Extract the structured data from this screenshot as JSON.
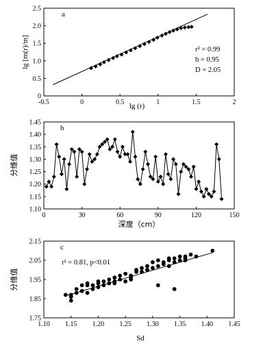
{
  "chart_data": [
    {
      "type": "scatter",
      "panel_letter": "a",
      "xlabel": "lg (r)",
      "ylabel": "lg [m(r)/m]",
      "xlim": [
        -0.5,
        2
      ],
      "ylim": [
        0,
        2.5
      ],
      "xticks": [
        "-0.5",
        "0",
        "0.5",
        "1",
        "1.5",
        "2"
      ],
      "yticks": [
        "0",
        "0.5",
        "1.0",
        "1.5",
        "2.0",
        "2.5"
      ],
      "annotations": [
        "r² = 0.99",
        "b = 0.95",
        "D = 2.05"
      ],
      "fit_line": {
        "x": [
          -0.38,
          1.65
        ],
        "y": [
          0.32,
          2.33
        ]
      },
      "points": {
        "x": [
          0.12,
          0.18,
          0.24,
          0.29,
          0.35,
          0.41,
          0.46,
          0.52,
          0.58,
          0.64,
          0.7,
          0.76,
          0.82,
          0.88,
          0.94,
          0.99,
          1.05,
          1.1,
          1.15,
          1.2,
          1.25,
          1.3,
          1.35,
          1.4,
          1.44
        ],
        "y": [
          0.79,
          0.84,
          0.9,
          0.96,
          1.02,
          1.08,
          1.13,
          1.18,
          1.24,
          1.3,
          1.36,
          1.42,
          1.48,
          1.54,
          1.6,
          1.66,
          1.72,
          1.77,
          1.82,
          1.86,
          1.9,
          1.93,
          1.95,
          1.96,
          1.97
        ]
      }
    },
    {
      "type": "line",
      "panel_letter": "b",
      "xlabel": "深度（cm）",
      "ylabel": "分维值",
      "xlim": [
        0,
        150
      ],
      "ylim": [
        1.1,
        1.45
      ],
      "xticks": [
        "0",
        "30",
        "60",
        "90",
        "120",
        "150"
      ],
      "yticks": [
        "1.10",
        "1.15",
        "1.20",
        "1.25",
        "1.30",
        "1.35",
        "1.40",
        "1.45"
      ],
      "x": [
        2,
        4,
        6,
        8,
        10,
        12,
        14,
        16,
        18,
        20,
        22,
        24,
        26,
        28,
        30,
        32,
        34,
        36,
        38,
        40,
        42,
        44,
        46,
        48,
        50,
        52,
        54,
        56,
        58,
        60,
        62,
        64,
        66,
        68,
        70,
        72,
        74,
        76,
        78,
        80,
        82,
        84,
        86,
        88,
        90,
        92,
        94,
        96,
        98,
        100,
        102,
        104,
        106,
        108,
        110,
        112,
        114,
        116,
        118,
        120,
        122,
        124,
        126,
        128,
        130,
        132,
        134,
        136,
        138,
        140
      ],
      "y": [
        1.19,
        1.21,
        1.19,
        1.23,
        1.36,
        1.31,
        1.24,
        1.3,
        1.18,
        1.28,
        1.34,
        1.33,
        1.23,
        1.34,
        1.33,
        1.2,
        1.26,
        1.32,
        1.29,
        1.3,
        1.32,
        1.35,
        1.36,
        1.37,
        1.38,
        1.34,
        1.35,
        1.38,
        1.33,
        1.31,
        1.35,
        1.32,
        1.32,
        1.29,
        1.41,
        1.31,
        1.22,
        1.2,
        1.26,
        1.33,
        1.28,
        1.23,
        1.22,
        1.31,
        1.21,
        1.23,
        1.2,
        1.32,
        1.24,
        1.22,
        1.3,
        1.28,
        1.16,
        1.25,
        1.28,
        1.27,
        1.26,
        1.23,
        1.27,
        1.18,
        1.21,
        1.17,
        1.15,
        1.18,
        1.16,
        1.15,
        1.17,
        1.36,
        1.3,
        1.14
      ]
    },
    {
      "type": "scatter",
      "panel_letter": "c",
      "xlabel": "Sd",
      "ylabel": "分维值",
      "xlim": [
        1.1,
        1.45
      ],
      "ylim": [
        1.75,
        2.15
      ],
      "xticks": [
        "1.10",
        "1.15",
        "1.20",
        "1.25",
        "1.30",
        "1.35",
        "1.40",
        "1.45"
      ],
      "yticks": [
        "1.75",
        "1.85",
        "1.95",
        "2.05",
        "2.15"
      ],
      "annotation": "r² = 0.81, p<0.01",
      "fit_line": {
        "x": [
          1.14,
          1.41
        ],
        "y": [
          1.865,
          2.09
        ]
      },
      "points": {
        "x": [
          1.14,
          1.15,
          1.15,
          1.16,
          1.16,
          1.17,
          1.17,
          1.18,
          1.18,
          1.19,
          1.19,
          1.2,
          1.2,
          1.21,
          1.21,
          1.22,
          1.22,
          1.23,
          1.23,
          1.24,
          1.24,
          1.25,
          1.25,
          1.26,
          1.26,
          1.27,
          1.27,
          1.28,
          1.28,
          1.29,
          1.29,
          1.3,
          1.3,
          1.31,
          1.31,
          1.32,
          1.32,
          1.33,
          1.33,
          1.34,
          1.34,
          1.35,
          1.35,
          1.36,
          1.36,
          1.37,
          1.38,
          1.41,
          1.31,
          1.34,
          1.15,
          1.18,
          1.23,
          1.29,
          1.33,
          1.36,
          1.2,
          1.26
        ],
        "y": [
          1.87,
          1.84,
          1.87,
          1.88,
          1.9,
          1.89,
          1.92,
          1.88,
          1.93,
          1.9,
          1.92,
          1.91,
          1.94,
          1.92,
          1.94,
          1.93,
          1.95,
          1.94,
          1.96,
          1.95,
          1.97,
          1.94,
          1.98,
          1.95,
          1.97,
          1.99,
          2.0,
          1.99,
          2.01,
          2.0,
          2.02,
          2.01,
          2.04,
          2.02,
          2.05,
          2.03,
          2.04,
          2.05,
          2.06,
          2.04,
          2.06,
          2.05,
          2.07,
          2.06,
          2.07,
          2.08,
          2.07,
          2.1,
          1.92,
          1.9,
          1.86,
          1.92,
          1.93,
          2.0,
          2.02,
          2.05,
          1.93,
          1.96
        ]
      }
    }
  ]
}
